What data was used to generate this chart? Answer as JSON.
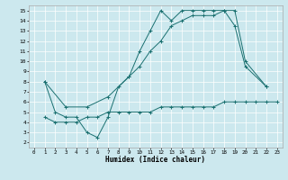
{
  "xlabel": "Humidex (Indice chaleur)",
  "bg_color": "#cce8ee",
  "line_color": "#1a7070",
  "grid_color": "#ffffff",
  "xlim": [
    -0.5,
    23.5
  ],
  "ylim": [
    1.5,
    15.5
  ],
  "xticks": [
    0,
    1,
    2,
    3,
    4,
    5,
    6,
    7,
    8,
    9,
    10,
    11,
    12,
    13,
    14,
    15,
    16,
    17,
    18,
    19,
    20,
    21,
    22,
    23
  ],
  "yticks": [
    2,
    3,
    4,
    5,
    6,
    7,
    8,
    9,
    10,
    11,
    12,
    13,
    14,
    15
  ],
  "line1": {
    "x": [
      1,
      2,
      3,
      4,
      5,
      6,
      7,
      8,
      9,
      10,
      11,
      12,
      13,
      14,
      15,
      16,
      17,
      18,
      19,
      20,
      22
    ],
    "y": [
      8.0,
      5.0,
      4.5,
      4.5,
      3.0,
      2.5,
      4.5,
      7.5,
      8.5,
      11.0,
      13.0,
      15.0,
      14.0,
      15.0,
      15.0,
      15.0,
      15.0,
      15.0,
      15.0,
      10.0,
      7.5
    ]
  },
  "line2": {
    "x": [
      1,
      3,
      5,
      7,
      9,
      10,
      11,
      12,
      13,
      14,
      15,
      16,
      17,
      18,
      19,
      20,
      22
    ],
    "y": [
      8.0,
      5.5,
      5.5,
      6.5,
      8.5,
      9.5,
      11.0,
      12.0,
      13.5,
      14.0,
      14.5,
      14.5,
      14.5,
      15.0,
      13.5,
      9.5,
      7.5
    ]
  },
  "line3": {
    "x": [
      1,
      2,
      3,
      4,
      5,
      6,
      7,
      8,
      9,
      10,
      11,
      12,
      13,
      14,
      15,
      16,
      17,
      18,
      19,
      20,
      21,
      22,
      23
    ],
    "y": [
      4.5,
      4.0,
      4.0,
      4.0,
      4.5,
      4.5,
      5.0,
      5.0,
      5.0,
      5.0,
      5.0,
      5.5,
      5.5,
      5.5,
      5.5,
      5.5,
      5.5,
      6.0,
      6.0,
      6.0,
      6.0,
      6.0,
      6.0
    ]
  }
}
